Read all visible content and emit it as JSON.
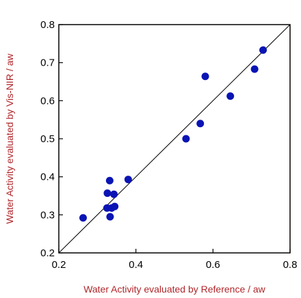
{
  "chart_data": {
    "type": "scatter",
    "title": "",
    "xlabel": "Water Activity evaluated by Reference / aw",
    "ylabel": "Water Activity evaluated by Vis-NIR / aw",
    "xlim": [
      0.2,
      0.8
    ],
    "ylim": [
      0.2,
      0.8
    ],
    "x_ticks": [
      0.2,
      0.4,
      0.6,
      0.8
    ],
    "x_tick_labels": [
      "0.2",
      "0.4",
      "0.6",
      "0.8"
    ],
    "y_ticks": [
      0.2,
      0.3,
      0.4,
      0.5,
      0.6,
      0.7,
      0.8
    ],
    "y_tick_labels": [
      "0.2",
      "0.3",
      "0.4",
      "0.5",
      "0.6",
      "0.7",
      "0.8"
    ],
    "grid": false,
    "reference_line": {
      "from": [
        0.2,
        0.2
      ],
      "to": [
        0.8,
        0.8
      ]
    },
    "points": [
      {
        "x": 0.263,
        "y": 0.292
      },
      {
        "x": 0.325,
        "y": 0.318
      },
      {
        "x": 0.326,
        "y": 0.357
      },
      {
        "x": 0.332,
        "y": 0.39
      },
      {
        "x": 0.333,
        "y": 0.295
      },
      {
        "x": 0.337,
        "y": 0.318
      },
      {
        "x": 0.343,
        "y": 0.354
      },
      {
        "x": 0.345,
        "y": 0.322
      },
      {
        "x": 0.38,
        "y": 0.393
      },
      {
        "x": 0.53,
        "y": 0.5
      },
      {
        "x": 0.567,
        "y": 0.54
      },
      {
        "x": 0.58,
        "y": 0.664
      },
      {
        "x": 0.645,
        "y": 0.612
      },
      {
        "x": 0.708,
        "y": 0.683
      },
      {
        "x": 0.73,
        "y": 0.733
      }
    ],
    "colors": {
      "marker": "#0a14b4",
      "label": "#b0262a",
      "axis": "#000000"
    }
  }
}
